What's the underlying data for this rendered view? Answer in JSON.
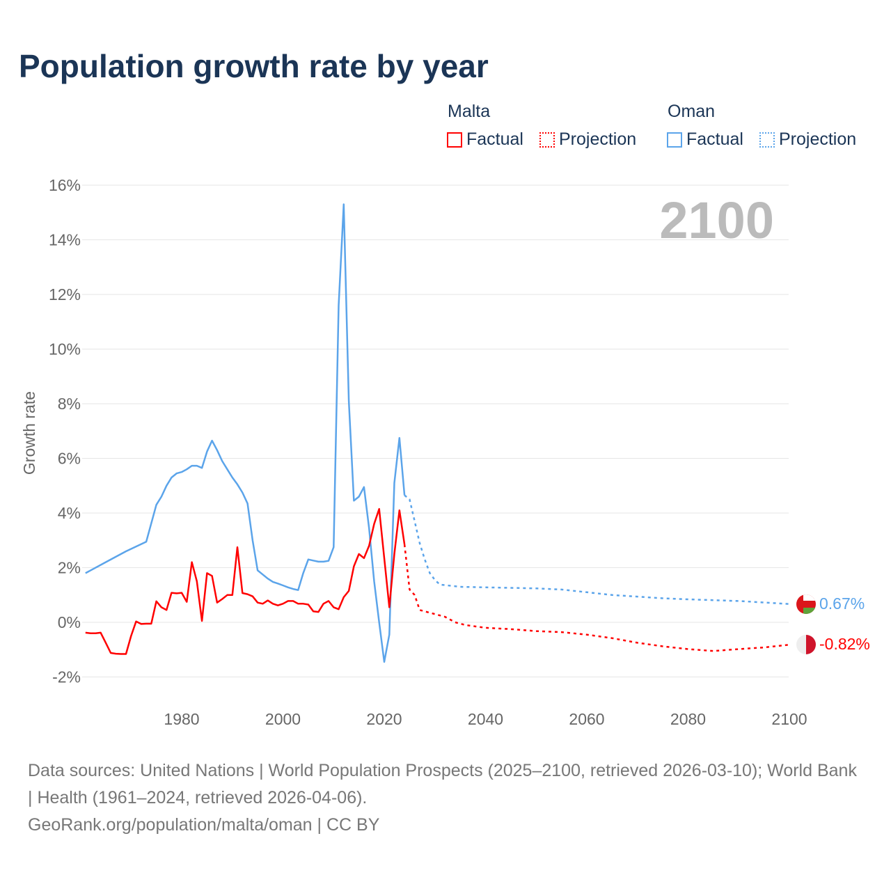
{
  "title": "Population growth rate by year",
  "legend": {
    "groups": [
      {
        "name": "Malta",
        "color": "#ff0000",
        "factual": "Factual",
        "projection": "Projection"
      },
      {
        "name": "Oman",
        "color": "#5ba4ea",
        "factual": "Factual",
        "projection": "Projection"
      }
    ]
  },
  "year_label": "2100",
  "footer": {
    "sources": "Data sources: United Nations | World Population Prospects (2025–2100, retrieved 2026-03-10); World Bank | Health (1961–2024, retrieved 2026-04-06).",
    "credit": "GeoRank.org/population/malta/oman | CC BY"
  },
  "chart_data": {
    "type": "line",
    "title": "Population growth rate by year",
    "xlabel": "",
    "ylabel": "Growth rate",
    "xlim": [
      1961,
      2100
    ],
    "ylim": [
      -3,
      17
    ],
    "x_ticks": [
      1980,
      2000,
      2020,
      2040,
      2060,
      2080,
      2100
    ],
    "y_ticks": [
      -2,
      0,
      2,
      4,
      6,
      8,
      10,
      12,
      14,
      16
    ],
    "y_tick_labels": [
      "-2%",
      "0%",
      "2%",
      "4%",
      "6%",
      "8%",
      "10%",
      "12%",
      "14%",
      "16%"
    ],
    "grid": true,
    "series": [
      {
        "name": "Oman",
        "kind": "factual",
        "color": "#5ba4ea",
        "x": [
          1961,
          1965,
          1969,
          1973,
          1975,
          1976,
          1977,
          1978,
          1979,
          1980,
          1981,
          1982,
          1983,
          1984,
          1985,
          1986,
          1987,
          1988,
          1989,
          1990,
          1991,
          1992,
          1993,
          1994,
          1995,
          1996,
          1997,
          1998,
          1999,
          2000,
          2001,
          2002,
          2003,
          2004,
          2005,
          2006,
          2007,
          2008,
          2009,
          2010,
          2011,
          2012,
          2013,
          2014,
          2015,
          2016,
          2017,
          2018,
          2019,
          2020,
          2021,
          2022,
          2023,
          2024
        ],
        "y": [
          1.8,
          2.2,
          2.6,
          2.95,
          4.3,
          4.6,
          5.0,
          5.3,
          5.45,
          5.5,
          5.6,
          5.73,
          5.73,
          5.65,
          6.25,
          6.65,
          6.3,
          5.9,
          5.6,
          5.3,
          5.05,
          4.75,
          4.35,
          3.0,
          1.9,
          1.75,
          1.6,
          1.48,
          1.42,
          1.35,
          1.28,
          1.22,
          1.18,
          1.8,
          2.3,
          2.26,
          2.22,
          2.22,
          2.25,
          2.75,
          11.6,
          15.3,
          8.1,
          4.45,
          4.6,
          4.95,
          3.45,
          1.5,
          0.0,
          -1.45,
          -0.45,
          5.1,
          6.75,
          4.65
        ]
      },
      {
        "name": "Oman",
        "kind": "projection",
        "color": "#5ba4ea",
        "x": [
          2024,
          2025,
          2026,
          2027,
          2028,
          2029,
          2030,
          2031,
          2035,
          2040,
          2045,
          2050,
          2055,
          2060,
          2065,
          2070,
          2075,
          2080,
          2090,
          2100
        ],
        "y": [
          4.65,
          4.5,
          3.7,
          2.9,
          2.3,
          1.8,
          1.55,
          1.38,
          1.3,
          1.28,
          1.26,
          1.24,
          1.2,
          1.1,
          1.0,
          0.94,
          0.88,
          0.84,
          0.78,
          0.67
        ]
      },
      {
        "name": "Malta",
        "kind": "factual",
        "color": "#ff0000",
        "x": [
          1961,
          1962,
          1963,
          1964,
          1965,
          1966,
          1967,
          1968,
          1969,
          1970,
          1971,
          1972,
          1973,
          1974,
          1975,
          1976,
          1977,
          1978,
          1979,
          1980,
          1981,
          1982,
          1983,
          1984,
          1985,
          1986,
          1987,
          1988,
          1989,
          1990,
          1991,
          1992,
          1993,
          1994,
          1995,
          1996,
          1997,
          1998,
          1999,
          2000,
          2001,
          2002,
          2003,
          2004,
          2005,
          2006,
          2007,
          2008,
          2009,
          2010,
          2011,
          2012,
          2013,
          2014,
          2015,
          2016,
          2017,
          2018,
          2019,
          2020,
          2021,
          2022,
          2023,
          2024
        ],
        "y": [
          -0.38,
          -0.4,
          -0.4,
          -0.38,
          -0.75,
          -1.12,
          -1.15,
          -1.16,
          -1.16,
          -0.5,
          0.03,
          -0.06,
          -0.05,
          -0.05,
          0.77,
          0.55,
          0.45,
          1.08,
          1.06,
          1.08,
          0.75,
          2.2,
          1.5,
          0.05,
          1.8,
          1.7,
          0.72,
          0.85,
          1.0,
          1.0,
          2.75,
          1.07,
          1.03,
          0.95,
          0.72,
          0.68,
          0.8,
          0.68,
          0.62,
          0.68,
          0.78,
          0.78,
          0.68,
          0.68,
          0.65,
          0.4,
          0.38,
          0.68,
          0.78,
          0.55,
          0.48,
          0.92,
          1.15,
          2.05,
          2.5,
          2.35,
          2.8,
          3.6,
          4.15,
          2.35,
          0.55,
          2.5,
          4.1,
          2.85
        ]
      },
      {
        "name": "Malta",
        "kind": "projection",
        "color": "#ff0000",
        "x": [
          2024,
          2025,
          2026,
          2027,
          2028,
          2030,
          2032,
          2034,
          2036,
          2040,
          2045,
          2050,
          2055,
          2060,
          2065,
          2070,
          2075,
          2080,
          2085,
          2090,
          2095,
          2100
        ],
        "y": [
          2.85,
          1.2,
          1.0,
          0.45,
          0.4,
          0.3,
          0.2,
          0.0,
          -0.1,
          -0.2,
          -0.25,
          -0.32,
          -0.36,
          -0.45,
          -0.58,
          -0.75,
          -0.88,
          -0.98,
          -1.05,
          -0.98,
          -0.92,
          -0.82
        ]
      }
    ],
    "end_labels": [
      {
        "name": "Oman",
        "text": "0.67%",
        "color": "#5ba4ea"
      },
      {
        "name": "Malta",
        "text": "-0.82%",
        "color": "#ff0000"
      }
    ]
  }
}
